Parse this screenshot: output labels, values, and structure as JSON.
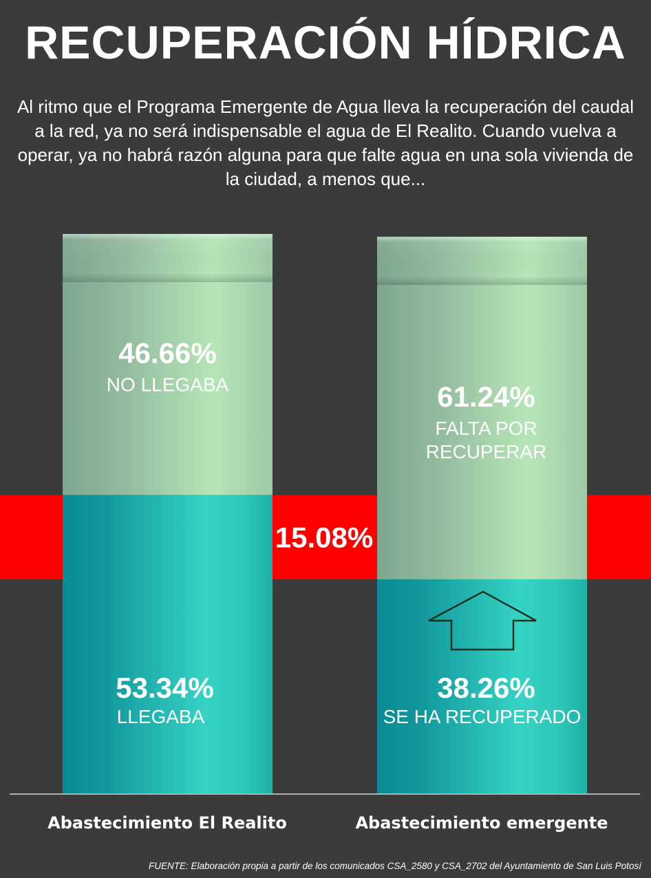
{
  "header": {
    "title": "RECUPERACIÓN HÍDRICA",
    "intro": "Al ritmo que el Programa Emergente de Agua lleva la recuperación del caudal a la red, ya no será indispensable el agua de El Realito. Cuando vuelva a operar, ya no habrá razón alguna para que falte agua en una sola vivienda de la ciudad, a menos que..."
  },
  "chart_data": {
    "type": "bar",
    "stacked": true,
    "ylim": [
      0,
      100
    ],
    "categories": [
      "Abastecimiento El Realito",
      "Abastecimiento emergente"
    ],
    "series": [
      {
        "color": "#2bbfb6",
        "values": [
          53.34,
          38.26
        ],
        "value_labels": [
          "53.34%",
          "38.26%"
        ],
        "labels": [
          "LLEGABA",
          "SE HA RECUPERADO"
        ]
      },
      {
        "color": "#a6d8ad",
        "values": [
          46.66,
          61.24
        ],
        "value_labels": [
          "46.66%",
          "61.24%"
        ],
        "labels": [
          "NO LLEGABA",
          "FALTA POR RECUPERAR"
        ]
      }
    ],
    "annotation": {
      "label": "15.08%",
      "value": 15.08,
      "color": "#ff0000"
    },
    "arrow_icon": "up-arrow-icon"
  },
  "footer": {
    "source": "FUENTE: Elaboración propia a partir de los comunicados CSA_2580 y CSA_2702 del Ayuntamiento de San Luis Potosí"
  }
}
